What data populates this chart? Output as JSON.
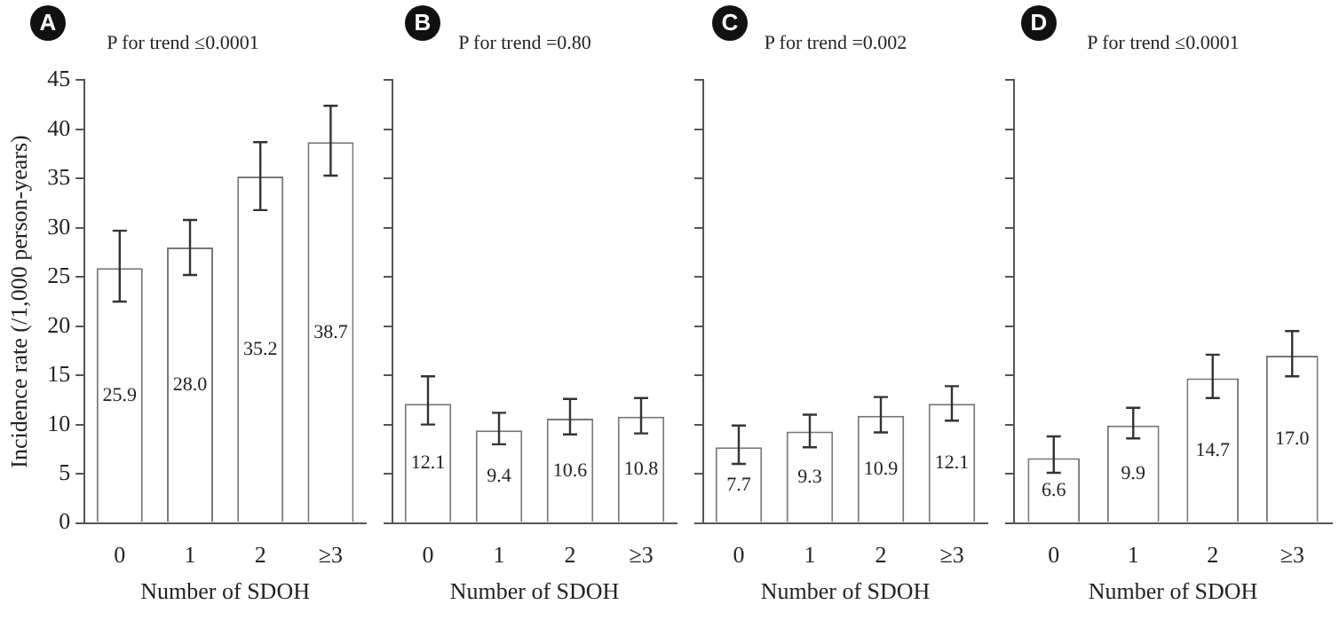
{
  "chart_data": [
    {
      "type": "bar",
      "title": "P for trend ≤0.0001",
      "annotations": [
        "A"
      ],
      "xlabel": "Number of SDOH",
      "ylabel": "Incidence rate (/1,000 person-years)",
      "categories": [
        "0",
        "1",
        "2",
        "≥3"
      ],
      "values": [
        25.9,
        28.0,
        35.2,
        38.7
      ],
      "value_labels": [
        "25.9",
        "28.0",
        "35.2",
        "38.7"
      ],
      "errors": [
        [
          22.5,
          29.7
        ],
        [
          25.2,
          30.8
        ],
        [
          31.8,
          38.7
        ],
        [
          35.3,
          42.4
        ]
      ],
      "color": "#ffffff",
      "ylim": [
        0,
        45
      ],
      "yticks": [
        0,
        5,
        10,
        15,
        20,
        25,
        30,
        35,
        40,
        45
      ]
    },
    {
      "type": "bar",
      "title": "P for trend =0.80",
      "annotations": [
        "B"
      ],
      "xlabel": "Number of SDOH",
      "categories": [
        "0",
        "1",
        "2",
        "≥3"
      ],
      "values": [
        12.1,
        9.4,
        10.6,
        10.8
      ],
      "value_labels": [
        "12.1",
        "9.4",
        "10.6",
        "10.8"
      ],
      "errors": [
        [
          10.0,
          14.9
        ],
        [
          8.0,
          11.2
        ],
        [
          9.0,
          12.6
        ],
        [
          9.1,
          12.7
        ]
      ],
      "color": "#ffffff",
      "ylim": [
        0,
        45
      ],
      "yticks": [
        0,
        5,
        10,
        15,
        20,
        25,
        30,
        35,
        40,
        45
      ],
      "tick_labels": "x"
    },
    {
      "type": "bar",
      "title": "P for trend =0.002",
      "annotations": [
        "C"
      ],
      "xlabel": "Number of SDOH",
      "categories": [
        "0",
        "1",
        "2",
        "≥3"
      ],
      "values": [
        7.7,
        9.3,
        10.9,
        12.1
      ],
      "value_labels": [
        "7.7",
        "9.3",
        "10.9",
        "12.1"
      ],
      "errors": [
        [
          6.0,
          9.9
        ],
        [
          7.7,
          11.0
        ],
        [
          9.2,
          12.8
        ],
        [
          10.4,
          13.9
        ]
      ],
      "color": "#ffffff",
      "ylim": [
        0,
        45
      ],
      "yticks": [
        0,
        5,
        10,
        15,
        20,
        25,
        30,
        35,
        40,
        45
      ],
      "tick_labels": "x"
    },
    {
      "type": "bar",
      "title": "P for trend ≤0.0001",
      "annotations": [
        "D"
      ],
      "xlabel": "Number of SDOH",
      "categories": [
        "0",
        "1",
        "2",
        "≥3"
      ],
      "values": [
        6.6,
        9.9,
        14.7,
        17.0
      ],
      "value_labels": [
        "6.6",
        "9.9",
        "14.7",
        "17.0"
      ],
      "errors": [
        [
          5.1,
          8.8
        ],
        [
          8.6,
          11.7
        ],
        [
          12.7,
          17.1
        ],
        [
          14.9,
          19.5
        ]
      ],
      "color": "#ffffff",
      "ylim": [
        0,
        45
      ],
      "yticks": [
        0,
        5,
        10,
        15,
        20,
        25,
        30,
        35,
        40,
        45
      ],
      "tick_labels": "x"
    }
  ]
}
